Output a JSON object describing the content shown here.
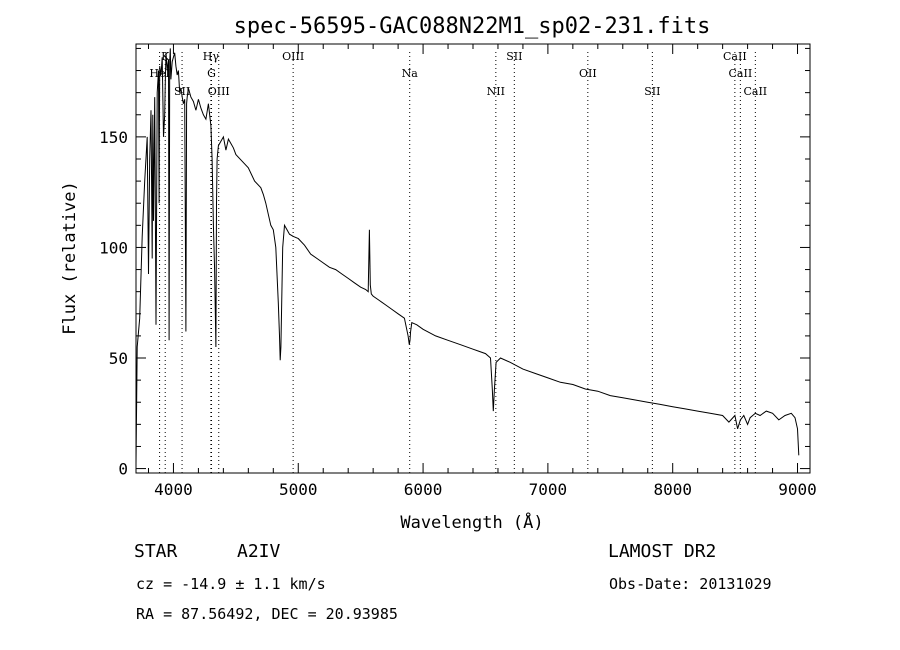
{
  "chart_data": {
    "type": "line",
    "title": "spec-56595-GAC088N22M1_sp02-231.fits",
    "xlabel": "Wavelength (Å)",
    "ylabel": "Flux (relative)",
    "xlim": [
      3700,
      9100
    ],
    "ylim": [
      -2,
      192
    ],
    "x_ticks": [
      4000,
      5000,
      6000,
      7000,
      8000,
      9000
    ],
    "y_ticks": [
      0,
      50,
      100,
      150
    ],
    "x_minor_step": 200,
    "y_minor_step": 10,
    "grid": false,
    "series": [
      {
        "x": [
          3700,
          3710,
          3730,
          3750,
          3770,
          3790,
          3800,
          3810,
          3820,
          3830,
          3835,
          3840,
          3850,
          3860,
          3870,
          3880,
          3885,
          3890,
          3900,
          3910,
          3920,
          3930,
          3935,
          3940,
          3950,
          3960,
          3965,
          3970,
          3975,
          3980,
          3990,
          4000,
          4010,
          4020,
          4030,
          4040,
          4050,
          4060,
          4070,
          4080,
          4090,
          4100,
          4105,
          4110,
          4120,
          4140,
          4160,
          4180,
          4200,
          4220,
          4240,
          4260,
          4280,
          4300,
          4310,
          4320,
          4330,
          4340,
          4345,
          4350,
          4360,
          4380,
          4400,
          4420,
          4440,
          4460,
          4480,
          4500,
          4550,
          4600,
          4650,
          4700,
          4720,
          4740,
          4760,
          4780,
          4800,
          4820,
          4840,
          4850,
          4855,
          4861,
          4867,
          4875,
          4890,
          4910,
          4930,
          4960,
          5000,
          5050,
          5100,
          5150,
          5200,
          5250,
          5300,
          5350,
          5400,
          5450,
          5500,
          5540,
          5560,
          5570,
          5577,
          5585,
          5600,
          5650,
          5700,
          5750,
          5800,
          5850,
          5880,
          5890,
          5895,
          5900,
          5910,
          5950,
          6000,
          6100,
          6200,
          6300,
          6400,
          6450,
          6500,
          6540,
          6555,
          6563,
          6571,
          6585,
          6620,
          6700,
          6800,
          6900,
          7000,
          7100,
          7200,
          7300,
          7400,
          7500,
          7600,
          7700,
          7800,
          7900,
          8000,
          8100,
          8200,
          8300,
          8400,
          8450,
          8498,
          8520,
          8542,
          8570,
          8600,
          8620,
          8662,
          8700,
          8750,
          8800,
          8850,
          8900,
          8950,
          8980,
          9000,
          9010
        ],
        "y": [
          2,
          55,
          68,
          105,
          130,
          150,
          88,
          140,
          162,
          95,
          160,
          112,
          168,
          65,
          170,
          180,
          120,
          182,
          178,
          186,
          150,
          160,
          175,
          188,
          180,
          185,
          58,
          184,
          190,
          176,
          184,
          186,
          188,
          182,
          178,
          180,
          170,
          172,
          168,
          165,
          167,
          62,
          165,
          168,
          172,
          168,
          166,
          162,
          167,
          163,
          160,
          158,
          165,
          155,
          140,
          110,
          90,
          55,
          120,
          140,
          146,
          148,
          150,
          144,
          149,
          147,
          145,
          142,
          139,
          136,
          130,
          127,
          124,
          120,
          115,
          110,
          108,
          100,
          75,
          60,
          49,
          55,
          75,
          100,
          110,
          108,
          106,
          105,
          104,
          101,
          97,
          95,
          93,
          91,
          90,
          88,
          86,
          84,
          82,
          81,
          80,
          108,
          83,
          79,
          78,
          76,
          74,
          72,
          70,
          68,
          60,
          56,
          58,
          62,
          66,
          65,
          63,
          60,
          58,
          56,
          54,
          53,
          52,
          50,
          36,
          26,
          35,
          48,
          50,
          48,
          45,
          43,
          41,
          39,
          38,
          36,
          35,
          33,
          32,
          31,
          30,
          29,
          28,
          27,
          26,
          25,
          24,
          21,
          24,
          18,
          22,
          24,
          20,
          23,
          25,
          24,
          26,
          25,
          22,
          24,
          25,
          23,
          18,
          6
        ]
      }
    ],
    "line_markers": [
      {
        "label": "K",
        "x": 3934
      },
      {
        "label": "HeI",
        "x": 3889
      },
      {
        "label": "SII",
        "x": 4069
      },
      {
        "label": "Hγ",
        "x": 4300
      },
      {
        "label": "G",
        "x": 4305
      },
      {
        "label": "OIII",
        "x": 4363
      },
      {
        "label": "OIII",
        "x": 4959
      },
      {
        "label": "Na",
        "x": 5893
      },
      {
        "label": "NII",
        "x": 6583
      },
      {
        "label": "SII",
        "x": 6731
      },
      {
        "label": "OII",
        "x": 7320
      },
      {
        "label": "SII",
        "x": 7837
      },
      {
        "label": "CaII",
        "x": 8498
      },
      {
        "label": "CaII",
        "x": 8542
      },
      {
        "label": "CaII",
        "x": 8662
      }
    ]
  },
  "info": {
    "object_class": "STAR",
    "subclass": "A2IV",
    "survey": "LAMOST DR2",
    "redshift": "cz = -14.9 ± 1.1 km/s",
    "obs_date": "Obs-Date: 20131029",
    "coords": "RA =  87.56492, DEC =  20.93985"
  }
}
